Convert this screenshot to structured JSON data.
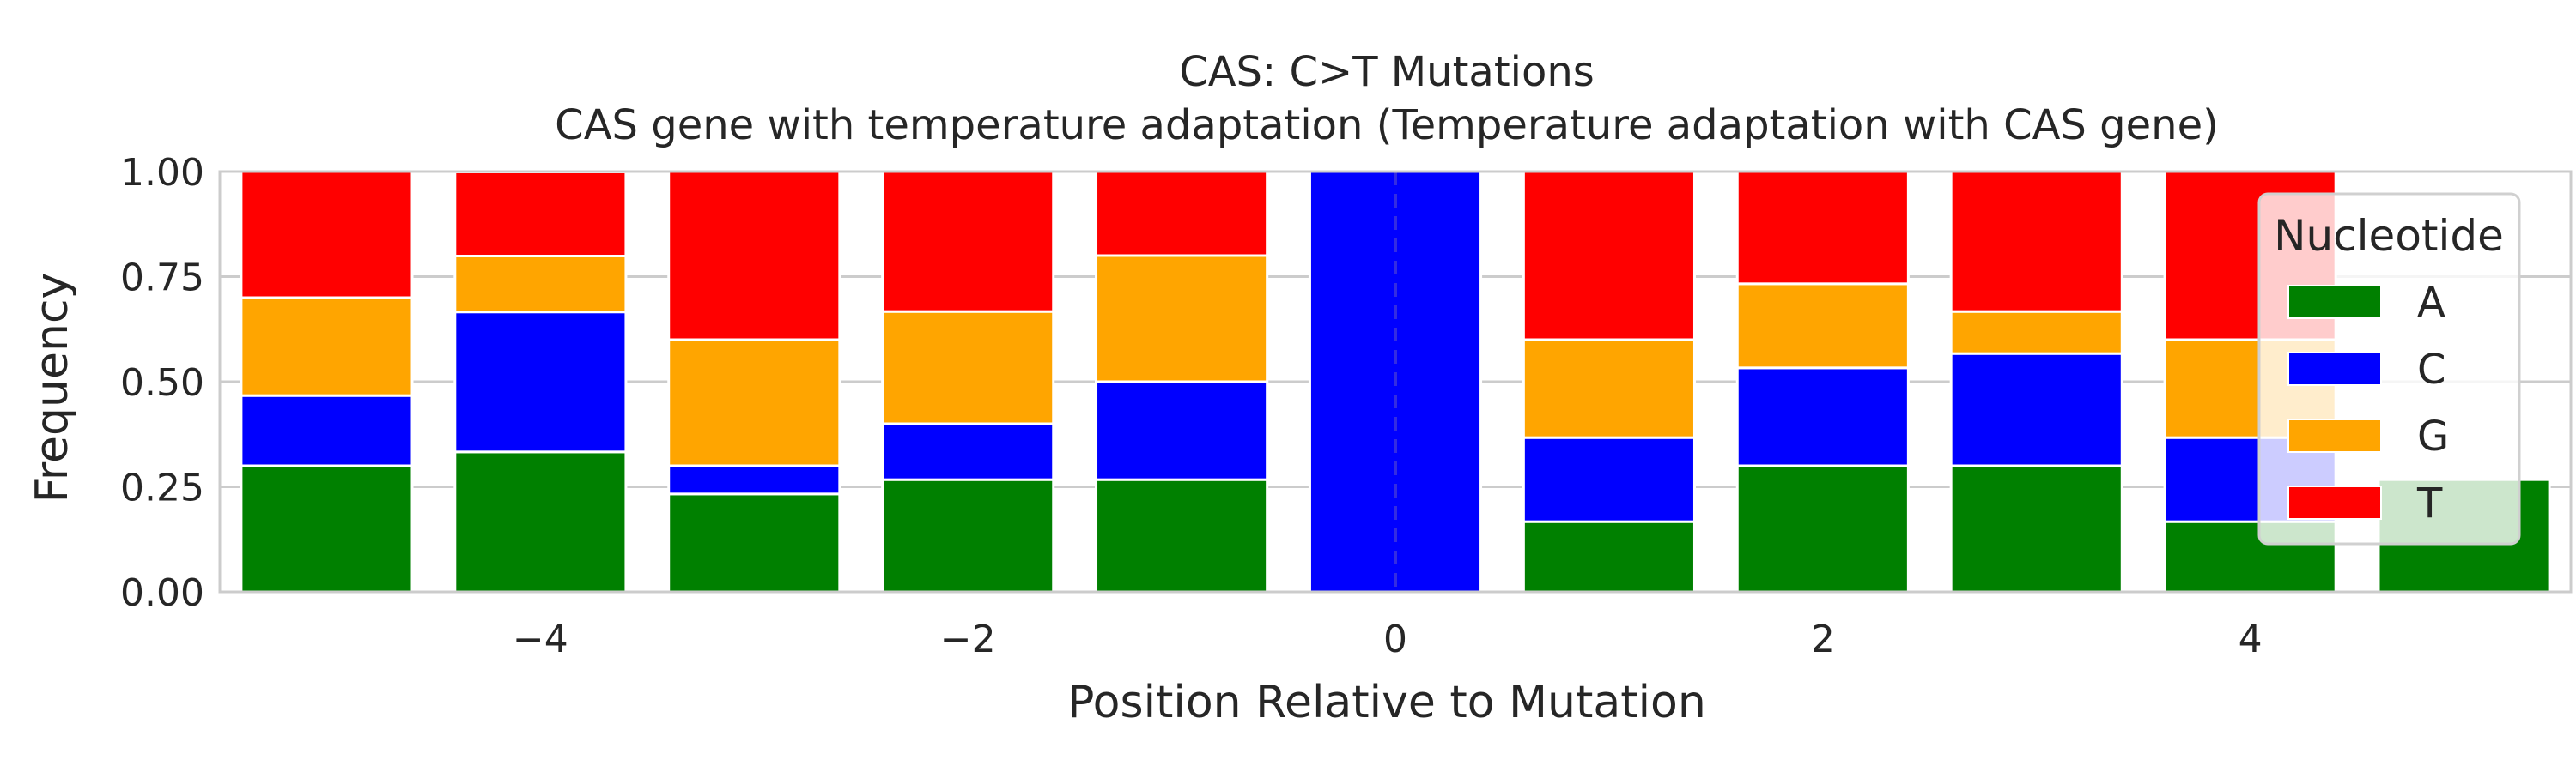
{
  "chart_data": {
    "type": "bar",
    "stacked": true,
    "title": "CAS: C>T Mutations",
    "subtitle": "CAS gene with temperature adaptation (Temperature adaptation with CAS gene)",
    "xlabel": "Position Relative to Mutation",
    "ylabel": "Frequency",
    "xlim": [
      -5.5,
      5.5
    ],
    "ylim": [
      0,
      1
    ],
    "x": [
      -5,
      -4,
      -3,
      -2,
      -1,
      0,
      1,
      2,
      3,
      4,
      5
    ],
    "x_ticks": [
      -4,
      -2,
      0,
      2,
      4
    ],
    "x_tick_labels": [
      "−4",
      "−2",
      "0",
      "2",
      "4"
    ],
    "y_ticks": [
      0,
      0.25,
      0.5,
      0.75,
      1.0
    ],
    "y_tick_labels": [
      "0.00",
      "0.25",
      "0.50",
      "0.75",
      "1.00"
    ],
    "grid": true,
    "reference_line_x": 0,
    "series": [
      {
        "name": "A",
        "color": "#008000",
        "values": [
          0.3,
          0.333,
          0.233,
          0.267,
          0.267,
          0.0,
          0.167,
          0.3,
          0.3,
          0.167,
          0.267
        ]
      },
      {
        "name": "C",
        "color": "#0000ff",
        "values": [
          0.167,
          0.333,
          0.067,
          0.133,
          0.233,
          1.0,
          0.2,
          0.233,
          0.267,
          0.2,
          0.0
        ]
      },
      {
        "name": "G",
        "color": "#ffa500",
        "values": [
          0.233,
          0.133,
          0.3,
          0.267,
          0.3,
          0.0,
          0.233,
          0.2,
          0.1,
          0.233,
          0.0
        ]
      },
      {
        "name": "T",
        "color": "#ff0000",
        "values": [
          0.3,
          0.2,
          0.4,
          0.333,
          0.2,
          0.0,
          0.4,
          0.267,
          0.333,
          0.4,
          0.0
        ]
      }
    ],
    "legend": {
      "title": "Nucleotide",
      "placement": "right"
    }
  }
}
